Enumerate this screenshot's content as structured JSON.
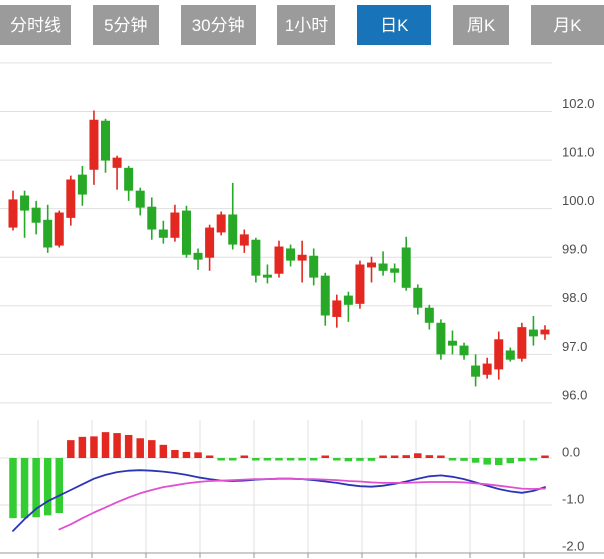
{
  "app": {
    "title": "K线图 (K-line chart widget)"
  },
  "tab_bar": {
    "tabs": [
      {
        "name": "time-line",
        "label": "分时线",
        "active": false
      },
      {
        "name": "5min",
        "label": "5分钟",
        "active": false
      },
      {
        "name": "30min",
        "label": "30分钟",
        "active": false
      },
      {
        "name": "1hour",
        "label": "1小时",
        "active": false
      },
      {
        "name": "daily-k",
        "label": "日K",
        "active": true
      },
      {
        "name": "weekly-k",
        "label": "周K",
        "active": false
      },
      {
        "name": "monthly-k",
        "label": "月K",
        "active": false
      }
    ]
  },
  "colors": {
    "tab_bg": "#9b9b9b",
    "tab_active_bg": "#1973b8",
    "tab_text": "#ffffff",
    "candle_up": "#e22820",
    "candle_down": "#27a827",
    "hist_up": "#e22820",
    "hist_down": "#33cc33",
    "dif_line": "#2a35b4",
    "dea_line": "#e14fd2",
    "grid": "#e0e0e0",
    "axis_text": "#4d4d4d",
    "axis_line": "#999999",
    "background": "#ffffff"
  },
  "chart_data": {
    "type": "candlestick",
    "subtype": "kline-with-macd-indicator",
    "selected_period": "日K",
    "price_panel": {
      "ylim": [
        95.9,
        103.0
      ],
      "gridline_values": [
        103,
        102,
        101,
        100,
        99,
        98,
        97,
        96
      ],
      "axis_tick_labels": [
        "102.0",
        "101.0",
        "100.0",
        "99.0",
        "98.0",
        "97.0",
        "96.0"
      ],
      "axis_tick_values": [
        102,
        101,
        100,
        99,
        98,
        97,
        96
      ],
      "candles": [
        {
          "o": 99.61,
          "h": 100.37,
          "l": 99.55,
          "c": 100.19
        },
        {
          "o": 100.27,
          "h": 100.37,
          "l": 99.4,
          "c": 99.96
        },
        {
          "o": 100.02,
          "h": 100.16,
          "l": 99.47,
          "c": 99.71
        },
        {
          "o": 99.77,
          "h": 100.08,
          "l": 99.09,
          "c": 99.2
        },
        {
          "o": 99.24,
          "h": 99.96,
          "l": 99.2,
          "c": 99.92
        },
        {
          "o": 99.81,
          "h": 100.68,
          "l": 99.65,
          "c": 100.6
        },
        {
          "o": 100.7,
          "h": 100.88,
          "l": 100.06,
          "c": 100.29
        },
        {
          "o": 100.8,
          "h": 102.02,
          "l": 100.49,
          "c": 101.83
        },
        {
          "o": 101.81,
          "h": 101.85,
          "l": 100.74,
          "c": 100.99
        },
        {
          "o": 100.84,
          "h": 101.09,
          "l": 100.39,
          "c": 101.05
        },
        {
          "o": 100.84,
          "h": 100.88,
          "l": 100.16,
          "c": 100.37
        },
        {
          "o": 100.37,
          "h": 100.43,
          "l": 99.86,
          "c": 100.02
        },
        {
          "o": 100.04,
          "h": 100.23,
          "l": 99.36,
          "c": 99.57
        },
        {
          "o": 99.57,
          "h": 99.75,
          "l": 99.28,
          "c": 99.4
        },
        {
          "o": 99.4,
          "h": 100.08,
          "l": 99.32,
          "c": 99.92
        },
        {
          "o": 99.96,
          "h": 100.06,
          "l": 98.99,
          "c": 99.05
        },
        {
          "o": 99.09,
          "h": 99.18,
          "l": 98.74,
          "c": 98.95
        },
        {
          "o": 98.99,
          "h": 99.67,
          "l": 98.72,
          "c": 99.61
        },
        {
          "o": 99.51,
          "h": 99.94,
          "l": 99.45,
          "c": 99.88
        },
        {
          "o": 99.88,
          "h": 100.53,
          "l": 99.16,
          "c": 99.26
        },
        {
          "o": 99.24,
          "h": 99.57,
          "l": 99.09,
          "c": 99.47
        },
        {
          "o": 99.36,
          "h": 99.4,
          "l": 98.48,
          "c": 98.62
        },
        {
          "o": 98.64,
          "h": 98.85,
          "l": 98.46,
          "c": 98.58
        },
        {
          "o": 98.66,
          "h": 99.34,
          "l": 98.58,
          "c": 99.22
        },
        {
          "o": 99.18,
          "h": 99.26,
          "l": 98.81,
          "c": 98.93
        },
        {
          "o": 98.93,
          "h": 99.34,
          "l": 98.48,
          "c": 99.05
        },
        {
          "o": 99.03,
          "h": 99.18,
          "l": 98.42,
          "c": 98.58
        },
        {
          "o": 98.62,
          "h": 98.68,
          "l": 97.59,
          "c": 97.8
        },
        {
          "o": 97.77,
          "h": 98.23,
          "l": 97.55,
          "c": 98.11
        },
        {
          "o": 98.21,
          "h": 98.29,
          "l": 97.67,
          "c": 98.02
        },
        {
          "o": 98.04,
          "h": 98.93,
          "l": 97.94,
          "c": 98.85
        },
        {
          "o": 98.79,
          "h": 99.01,
          "l": 98.48,
          "c": 98.89
        },
        {
          "o": 98.87,
          "h": 99.12,
          "l": 98.62,
          "c": 98.72
        },
        {
          "o": 98.77,
          "h": 98.87,
          "l": 98.48,
          "c": 98.68
        },
        {
          "o": 99.2,
          "h": 99.42,
          "l": 98.31,
          "c": 98.37
        },
        {
          "o": 98.37,
          "h": 98.44,
          "l": 97.82,
          "c": 97.96
        },
        {
          "o": 97.96,
          "h": 98.02,
          "l": 97.51,
          "c": 97.65
        },
        {
          "o": 97.65,
          "h": 97.72,
          "l": 96.89,
          "c": 97.0
        },
        {
          "o": 97.28,
          "h": 97.49,
          "l": 97.0,
          "c": 97.18
        },
        {
          "o": 97.18,
          "h": 97.24,
          "l": 96.89,
          "c": 96.98
        },
        {
          "o": 96.77,
          "h": 97.0,
          "l": 96.34,
          "c": 96.54
        },
        {
          "o": 96.58,
          "h": 96.93,
          "l": 96.5,
          "c": 96.81
        },
        {
          "o": 96.69,
          "h": 97.47,
          "l": 96.48,
          "c": 97.31
        },
        {
          "o": 97.08,
          "h": 97.14,
          "l": 96.85,
          "c": 96.89
        },
        {
          "o": 96.91,
          "h": 97.65,
          "l": 96.85,
          "c": 97.56
        },
        {
          "o": 97.51,
          "h": 97.79,
          "l": 97.18,
          "c": 97.37
        },
        {
          "o": 97.41,
          "h": 97.6,
          "l": 97.3,
          "c": 97.51
        }
      ]
    },
    "macd_panel": {
      "ylim": [
        -2.1,
        0.6
      ],
      "gridline_values": [
        0,
        -1,
        -2
      ],
      "axis_tick_labels": [
        "0.0",
        "-1.0",
        "-2.0"
      ],
      "axis_tick_values": [
        0,
        -1,
        -2
      ],
      "histogram": [
        -1.28,
        -1.28,
        -1.26,
        -1.22,
        -1.17,
        0.38,
        0.45,
        0.46,
        0.55,
        0.53,
        0.49,
        0.42,
        0.38,
        0.28,
        0.17,
        0.13,
        0.12,
        0.03,
        -0.02,
        -0.03,
        0.02,
        -0.04,
        -0.05,
        -0.05,
        -0.04,
        -0.04,
        -0.01,
        0.02,
        -0.02,
        -0.07,
        -0.06,
        -0.06,
        0.02,
        0.04,
        0.06,
        0.1,
        0.06,
        0.03,
        -0.03,
        -0.06,
        -0.1,
        -0.14,
        -0.15,
        -0.11,
        -0.07,
        -0.04,
        0.04
      ],
      "dif": [
        -1.55,
        -1.3,
        -1.08,
        -0.92,
        -0.8,
        -0.68,
        -0.56,
        -0.44,
        -0.36,
        -0.3,
        -0.27,
        -0.26,
        -0.27,
        -0.29,
        -0.32,
        -0.36,
        -0.41,
        -0.45,
        -0.48,
        -0.49,
        -0.48,
        -0.46,
        -0.45,
        -0.44,
        -0.44,
        -0.45,
        -0.47,
        -0.5,
        -0.53,
        -0.57,
        -0.6,
        -0.61,
        -0.59,
        -0.55,
        -0.5,
        -0.44,
        -0.39,
        -0.37,
        -0.4,
        -0.45,
        -0.52,
        -0.59,
        -0.66,
        -0.71,
        -0.74,
        -0.7,
        -0.62
      ],
      "dea": [
        null,
        null,
        null,
        null,
        -1.52,
        -1.41,
        -1.28,
        -1.16,
        -1.05,
        -0.94,
        -0.84,
        -0.75,
        -0.68,
        -0.62,
        -0.58,
        -0.54,
        -0.51,
        -0.49,
        -0.48,
        -0.47,
        -0.46,
        -0.45,
        -0.45,
        -0.44,
        -0.44,
        -0.45,
        -0.45,
        -0.46,
        -0.47,
        -0.49,
        -0.5,
        -0.52,
        -0.53,
        -0.53,
        -0.53,
        -0.52,
        -0.51,
        -0.51,
        -0.51,
        -0.52,
        -0.54,
        -0.56,
        -0.59,
        -0.62,
        -0.65,
        -0.66,
        -0.65
      ]
    }
  }
}
